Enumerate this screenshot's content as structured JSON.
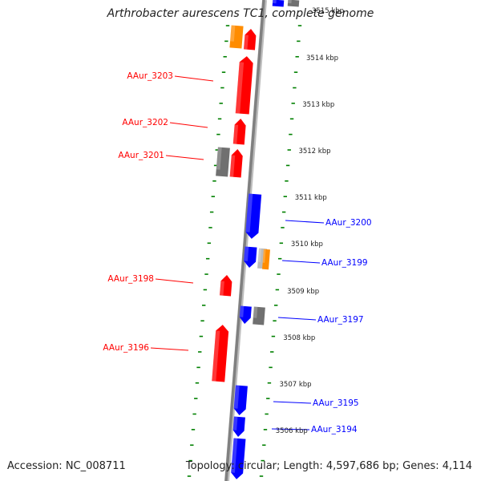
{
  "title": "Arthrobacter aurescens TC1, complete genome",
  "partial_top_label": "3515 kbp",
  "footer": {
    "accession": "Accession: NC_008711",
    "topology": "Topology: circular; Length: 4,597,686 bp; Genes: 4,114"
  },
  "colors": {
    "forward": "#ff0000",
    "reverse": "#0000ff",
    "other": "#ff8c00",
    "hypothetical": "#707070",
    "track_dots": "#008000",
    "backbone": "#808080"
  },
  "kbp_ticks": [
    {
      "label": "3514 kbp",
      "pos": 3514
    },
    {
      "label": "3513 kbp",
      "pos": 3513
    },
    {
      "label": "3512 kbp",
      "pos": 3512
    },
    {
      "label": "3511 kbp",
      "pos": 3511
    },
    {
      "label": "3510 kbp",
      "pos": 3510
    },
    {
      "label": "3509 kbp",
      "pos": 3509
    },
    {
      "label": "3508 kbp",
      "pos": 3508
    },
    {
      "label": "3507 kbp",
      "pos": 3507
    },
    {
      "label": "3506 kbp",
      "pos": 3506
    }
  ],
  "genes": [
    {
      "name": "AAur_3203",
      "strand": "forward",
      "labeled": true
    },
    {
      "name": "AAur_3202",
      "strand": "forward",
      "labeled": true
    },
    {
      "name": "AAur_3201",
      "strand": "forward",
      "labeled": true
    },
    {
      "name": "AAur_3200",
      "strand": "reverse",
      "labeled": true
    },
    {
      "name": "AAur_3199",
      "strand": "reverse",
      "labeled": true
    },
    {
      "name": "AAur_3198",
      "strand": "forward",
      "labeled": true
    },
    {
      "name": "AAur_3197",
      "strand": "reverse",
      "labeled": true
    },
    {
      "name": "AAur_3196",
      "strand": "forward",
      "labeled": true
    },
    {
      "name": "AAur_3195",
      "strand": "reverse",
      "labeled": true
    },
    {
      "name": "AAur_3194",
      "strand": "reverse",
      "labeled": true
    }
  ]
}
